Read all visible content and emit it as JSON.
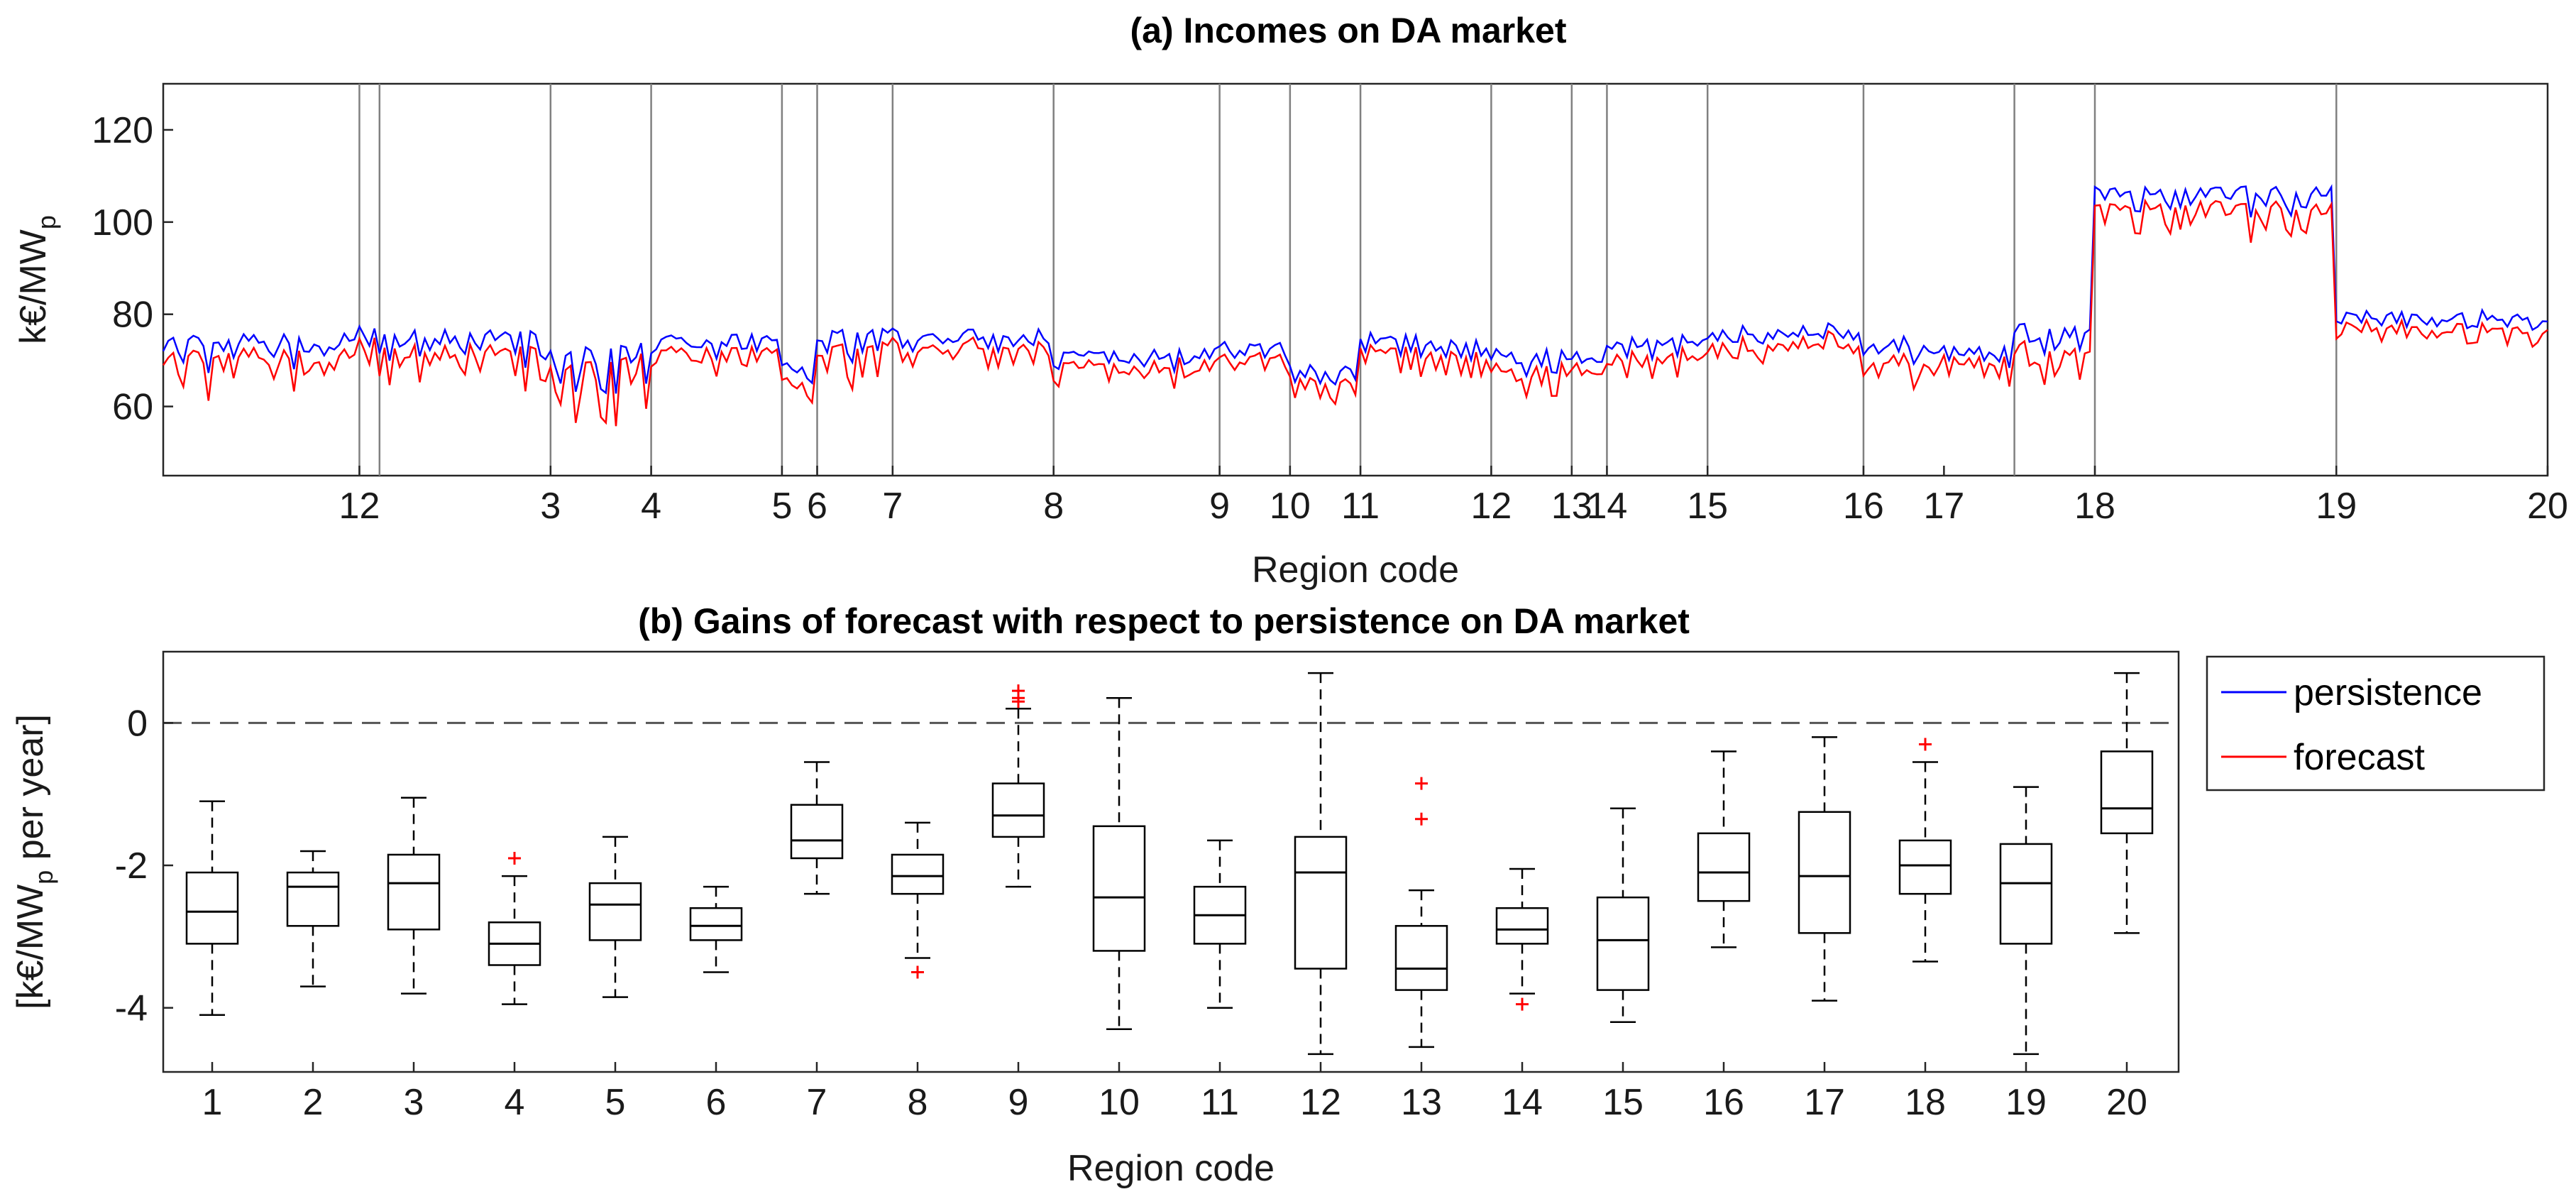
{
  "colors": {
    "persistence": "#0000ff",
    "forecast": "#ff0000",
    "axis": "#262626",
    "separator": "#808080",
    "outlier": "#ff0000"
  },
  "chart_data": [
    {
      "type": "line",
      "title": "(a) Incomes on DA market",
      "xlabel": "Region code",
      "ylabel": "k€/MW",
      "ylabel_sub": "p",
      "ylim": [
        45,
        130
      ],
      "yticks": [
        60,
        80,
        100,
        120
      ],
      "n_plants": 475,
      "region_boundaries": [
        1,
        40,
        44,
        78,
        98,
        124,
        131,
        146,
        178,
        211,
        225,
        239,
        265,
        281,
        288,
        308,
        339,
        369,
        385,
        433,
        475
      ],
      "region_labels": [
        "12",
        "3",
        "4",
        "5",
        "6",
        "7",
        "8",
        "9",
        "10",
        "11",
        "12",
        "13",
        "14",
        "15",
        "16",
        "17",
        "18",
        "19",
        "20"
      ],
      "region_label_positions": [
        40,
        78,
        98,
        124,
        131,
        146,
        178,
        211,
        225,
        239,
        265,
        281,
        288,
        308,
        339,
        355,
        385,
        433,
        475
      ],
      "region_levels": [
        {
          "from": 1,
          "to": 40,
          "persistence": 73,
          "forecast": 70,
          "dip": 6
        },
        {
          "from": 40,
          "to": 44,
          "persistence": 76,
          "forecast": 74,
          "dip": 2
        },
        {
          "from": 44,
          "to": 78,
          "persistence": 74,
          "forecast": 71,
          "dip": 6
        },
        {
          "from": 78,
          "to": 98,
          "persistence": 70,
          "forecast": 67,
          "dip": 9
        },
        {
          "from": 98,
          "to": 124,
          "persistence": 74,
          "forecast": 72,
          "dip": 3
        },
        {
          "from": 124,
          "to": 131,
          "persistence": 68,
          "forecast": 65,
          "dip": 4
        },
        {
          "from": 131,
          "to": 146,
          "persistence": 75,
          "forecast": 72,
          "dip": 5
        },
        {
          "from": 146,
          "to": 178,
          "persistence": 75,
          "forecast": 73,
          "dip": 3
        },
        {
          "from": 178,
          "to": 211,
          "persistence": 71,
          "forecast": 69,
          "dip": 3
        },
        {
          "from": 211,
          "to": 225,
          "persistence": 72,
          "forecast": 70,
          "dip": 3
        },
        {
          "from": 225,
          "to": 239,
          "persistence": 68,
          "forecast": 66,
          "dip": 4
        },
        {
          "from": 239,
          "to": 265,
          "persistence": 74,
          "forecast": 72,
          "dip": 4
        },
        {
          "from": 265,
          "to": 281,
          "persistence": 70,
          "forecast": 67,
          "dip": 5
        },
        {
          "from": 281,
          "to": 288,
          "persistence": 70,
          "forecast": 68,
          "dip": 3
        },
        {
          "from": 288,
          "to": 308,
          "persistence": 73,
          "forecast": 70,
          "dip": 5
        },
        {
          "from": 308,
          "to": 339,
          "persistence": 76,
          "forecast": 74,
          "dip": 3
        },
        {
          "from": 339,
          "to": 355,
          "persistence": 73,
          "forecast": 70,
          "dip": 3
        },
        {
          "from": 355,
          "to": 369,
          "persistence": 72,
          "forecast": 70,
          "dip": 3
        },
        {
          "from": 369,
          "to": 385,
          "persistence": 76,
          "forecast": 72,
          "dip": 4
        },
        {
          "from": 385,
          "to": 433,
          "persistence": 106,
          "forecast": 103,
          "dip": 4
        },
        {
          "from": 433,
          "to": 475,
          "persistence": 79,
          "forecast": 77,
          "dip": 2
        }
      ],
      "series": [
        {
          "name": "persistence",
          "color": "#0000ff"
        },
        {
          "name": "forecast",
          "color": "#ff0000"
        }
      ]
    },
    {
      "type": "box",
      "title": "(b) Gains of forecast with respect to persistence on DA market",
      "xlabel": "Region code",
      "ylabel": "[k€/MW",
      "ylabel_sub": "p",
      "ylabel_tail": " per year]",
      "ylim": [
        -4.9,
        1.0
      ],
      "yticks": [
        0,
        -2,
        -4
      ],
      "reference_line": 0,
      "categories": [
        "1",
        "2",
        "3",
        "4",
        "5",
        "6",
        "7",
        "8",
        "9",
        "10",
        "11",
        "12",
        "13",
        "14",
        "15",
        "16",
        "17",
        "18",
        "19",
        "20"
      ],
      "boxes": [
        {
          "min": -4.1,
          "q1": -3.1,
          "median": -2.65,
          "q3": -2.1,
          "max": -1.1,
          "outliers": []
        },
        {
          "min": -3.7,
          "q1": -2.85,
          "median": -2.3,
          "q3": -2.1,
          "max": -1.8,
          "outliers": []
        },
        {
          "min": -3.8,
          "q1": -2.9,
          "median": -2.25,
          "q3": -1.85,
          "max": -1.05,
          "outliers": []
        },
        {
          "min": -3.95,
          "q1": -3.4,
          "median": -3.1,
          "q3": -2.8,
          "max": -2.15,
          "outliers": [
            -1.9
          ]
        },
        {
          "min": -3.85,
          "q1": -3.05,
          "median": -2.55,
          "q3": -2.25,
          "max": -1.6,
          "outliers": []
        },
        {
          "min": -3.5,
          "q1": -3.05,
          "median": -2.85,
          "q3": -2.6,
          "max": -2.3,
          "outliers": []
        },
        {
          "min": -2.4,
          "q1": -1.9,
          "median": -1.65,
          "q3": -1.15,
          "max": -0.55,
          "outliers": []
        },
        {
          "min": -3.3,
          "q1": -2.4,
          "median": -2.15,
          "q3": -1.85,
          "max": -1.4,
          "outliers": [
            -3.5
          ]
        },
        {
          "min": -2.3,
          "q1": -1.6,
          "median": -1.3,
          "q3": -0.85,
          "max": 0.2,
          "outliers": [
            0.3,
            0.35,
            0.45
          ]
        },
        {
          "min": -4.3,
          "q1": -3.2,
          "median": -2.45,
          "q3": -1.45,
          "max": 0.35,
          "outliers": []
        },
        {
          "min": -4.0,
          "q1": -3.1,
          "median": -2.7,
          "q3": -2.3,
          "max": -1.65,
          "outliers": []
        },
        {
          "min": -4.65,
          "q1": -3.45,
          "median": -2.1,
          "q3": -1.6,
          "max": 0.7,
          "outliers": []
        },
        {
          "min": -4.55,
          "q1": -3.75,
          "median": -3.45,
          "q3": -2.85,
          "max": -2.35,
          "outliers": [
            -0.85,
            -1.35
          ]
        },
        {
          "min": -3.8,
          "q1": -3.1,
          "median": -2.9,
          "q3": -2.6,
          "max": -2.05,
          "outliers": [
            -3.95
          ]
        },
        {
          "min": -4.2,
          "q1": -3.75,
          "median": -3.05,
          "q3": -2.45,
          "max": -1.2,
          "outliers": []
        },
        {
          "min": -3.15,
          "q1": -2.5,
          "median": -2.1,
          "q3": -1.55,
          "max": -0.4,
          "outliers": []
        },
        {
          "min": -3.9,
          "q1": -2.95,
          "median": -2.15,
          "q3": -1.25,
          "max": -0.2,
          "outliers": []
        },
        {
          "min": -3.35,
          "q1": -2.4,
          "median": -2.0,
          "q3": -1.65,
          "max": -0.55,
          "outliers": [
            -0.3
          ]
        },
        {
          "min": -4.65,
          "q1": -3.1,
          "median": -2.25,
          "q3": -1.7,
          "max": -0.9,
          "outliers": []
        },
        {
          "min": -2.95,
          "q1": -1.55,
          "median": -1.2,
          "q3": -0.4,
          "max": 0.7,
          "outliers": []
        }
      ]
    }
  ],
  "legend": {
    "items": [
      {
        "label": "persistence",
        "color": "#0000ff"
      },
      {
        "label": "forecast",
        "color": "#ff0000"
      }
    ]
  }
}
